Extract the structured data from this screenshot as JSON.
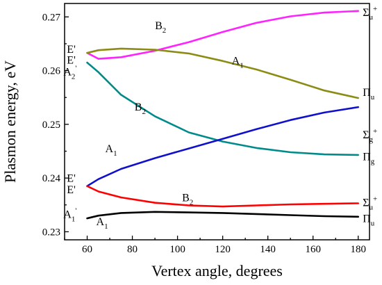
{
  "chart_data": {
    "type": "line",
    "xlabel": "Vertex angle, degrees",
    "ylabel": "Plasmon energy, eV",
    "xlim": [
      50,
      185
    ],
    "ylim": [
      0.2285,
      0.2725
    ],
    "xticks": [
      60,
      80,
      100,
      120,
      140,
      160,
      180
    ],
    "yticks": [
      0.23,
      0.24,
      0.25,
      0.26,
      0.27
    ],
    "ytick_labels": [
      "0.23",
      "0.24",
      "0.25",
      "0.26",
      "0.27"
    ],
    "grid": false,
    "series": [
      {
        "color": "#ff22ff",
        "points": [
          [
            60,
            0.2633
          ],
          [
            65,
            0.2622
          ],
          [
            75,
            0.2625
          ],
          [
            90,
            0.2637
          ],
          [
            105,
            0.2653
          ],
          [
            120,
            0.2672
          ],
          [
            135,
            0.2689
          ],
          [
            150,
            0.2701
          ],
          [
            165,
            0.2708
          ],
          [
            180,
            0.2711
          ]
        ]
      },
      {
        "color": "#8c8c14",
        "points": [
          [
            60,
            0.2633
          ],
          [
            65,
            0.2638
          ],
          [
            75,
            0.2641
          ],
          [
            90,
            0.2639
          ],
          [
            105,
            0.2632
          ],
          [
            120,
            0.2618
          ],
          [
            135,
            0.2602
          ],
          [
            150,
            0.2583
          ],
          [
            165,
            0.2563
          ],
          [
            180,
            0.2549
          ]
        ]
      },
      {
        "color": "#008b8b",
        "points": [
          [
            60,
            0.2615
          ],
          [
            65,
            0.2597
          ],
          [
            75,
            0.2555
          ],
          [
            90,
            0.2515
          ],
          [
            105,
            0.2485
          ],
          [
            120,
            0.2468
          ],
          [
            135,
            0.2456
          ],
          [
            150,
            0.2448
          ],
          [
            165,
            0.2444
          ],
          [
            180,
            0.2443
          ]
        ]
      },
      {
        "color": "#1010cc",
        "points": [
          [
            60,
            0.2385
          ],
          [
            65,
            0.2398
          ],
          [
            75,
            0.2417
          ],
          [
            90,
            0.2437
          ],
          [
            105,
            0.2455
          ],
          [
            120,
            0.2473
          ],
          [
            135,
            0.2491
          ],
          [
            150,
            0.2508
          ],
          [
            165,
            0.2522
          ],
          [
            180,
            0.2532
          ]
        ]
      },
      {
        "color": "#ff0000",
        "points": [
          [
            60,
            0.2385
          ],
          [
            65,
            0.2375
          ],
          [
            75,
            0.2364
          ],
          [
            90,
            0.2354
          ],
          [
            105,
            0.2349
          ],
          [
            120,
            0.2347
          ],
          [
            135,
            0.2349
          ],
          [
            150,
            0.2351
          ],
          [
            165,
            0.2352
          ],
          [
            180,
            0.2353
          ]
        ]
      },
      {
        "color": "#000000",
        "points": [
          [
            60,
            0.2325
          ],
          [
            65,
            0.233
          ],
          [
            75,
            0.2335
          ],
          [
            90,
            0.2337
          ],
          [
            105,
            0.2336
          ],
          [
            120,
            0.2335
          ],
          [
            135,
            0.2333
          ],
          [
            150,
            0.2331
          ],
          [
            165,
            0.2329
          ],
          [
            180,
            0.2328
          ]
        ]
      }
    ],
    "annotations": [
      {
        "base": "B",
        "sub": "2",
        "sup": "",
        "x": 90,
        "y": 0.2677
      },
      {
        "base": "A",
        "sub": "1",
        "sup": "",
        "x": 124,
        "y": 0.2612
      },
      {
        "base": "B",
        "sub": "2",
        "sup": "",
        "x": 81,
        "y": 0.2526
      },
      {
        "base": "A",
        "sub": "1",
        "sup": "",
        "x": 68,
        "y": 0.2448
      },
      {
        "base": "B",
        "sub": "2",
        "sup": "",
        "x": 102,
        "y": 0.2357
      },
      {
        "base": "A",
        "sub": "1",
        "sup": "",
        "x": 64,
        "y": 0.2312
      },
      {
        "base": "E'",
        "sub": "",
        "sup": "",
        "x": 51,
        "y": 0.2633
      },
      {
        "base": "E'",
        "sub": "",
        "sup": "",
        "x": 51,
        "y": 0.2613
      },
      {
        "base": "A",
        "sub": "2",
        "sup": "'",
        "x": 49.5,
        "y": 0.2591
      },
      {
        "base": "E'",
        "sub": "",
        "sup": "",
        "x": 51,
        "y": 0.2393
      },
      {
        "base": "E'",
        "sub": "",
        "sup": "",
        "x": 51,
        "y": 0.2372
      },
      {
        "base": "A",
        "sub": "1",
        "sup": "'",
        "x": 49.5,
        "y": 0.2326
      },
      {
        "base": "Σ",
        "sub": "u",
        "sup": "+",
        "x": 182,
        "y": 0.2702
      },
      {
        "base": "Π",
        "sub": "u",
        "sup": "",
        "x": 182,
        "y": 0.2553
      },
      {
        "base": "Σ",
        "sub": "g",
        "sup": "+",
        "x": 182,
        "y": 0.2474
      },
      {
        "base": "Π",
        "sub": "g",
        "sup": "",
        "x": 182,
        "y": 0.2433
      },
      {
        "base": "Σ",
        "sub": "u",
        "sup": "+",
        "x": 182,
        "y": 0.2348
      },
      {
        "base": "Π",
        "sub": "u",
        "sup": "",
        "x": 182,
        "y": 0.2318
      }
    ]
  }
}
